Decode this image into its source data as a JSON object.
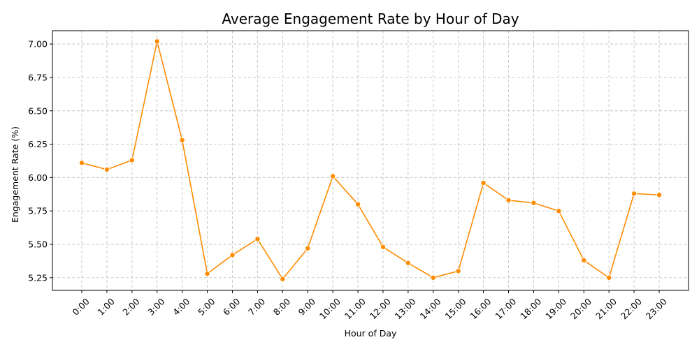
{
  "chart_data": {
    "type": "line",
    "title": "Average Engagement Rate by Hour of Day",
    "xlabel": "Hour of Day",
    "ylabel": "Engagement Rate (%)",
    "categories": [
      "0:00",
      "1:00",
      "2:00",
      "3:00",
      "4:00",
      "5:00",
      "6:00",
      "7:00",
      "8:00",
      "9:00",
      "10:00",
      "11:00",
      "12:00",
      "13:00",
      "14:00",
      "15:00",
      "16:00",
      "17:00",
      "18:00",
      "19:00",
      "20:00",
      "21:00",
      "22:00",
      "23:00"
    ],
    "values": [
      6.11,
      6.06,
      6.13,
      7.02,
      6.28,
      5.28,
      5.42,
      5.54,
      5.24,
      5.47,
      6.01,
      5.8,
      5.48,
      5.36,
      5.25,
      5.3,
      5.96,
      5.83,
      5.81,
      5.75,
      5.38,
      5.25,
      5.88,
      5.87
    ],
    "ylim": [
      5.155,
      7.1
    ],
    "yticks": [
      5.25,
      5.5,
      5.75,
      6.0,
      6.25,
      6.5,
      6.75,
      7.0
    ],
    "ytick_labels": [
      "5.25",
      "5.50",
      "5.75",
      "6.00",
      "6.25",
      "6.50",
      "6.75",
      "7.00"
    ],
    "grid": true,
    "line_color": "#ff8c00",
    "marker": "circle",
    "x_tick_rotation": 45
  }
}
